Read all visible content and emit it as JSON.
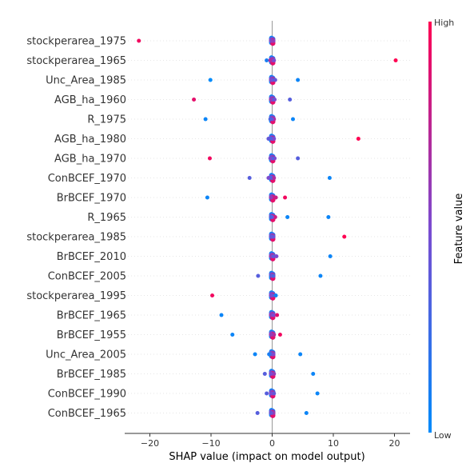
{
  "chart_data": {
    "type": "scatter",
    "title": "",
    "xlabel": "SHAP value (impact on model output)",
    "ylabel": "",
    "xlim": [
      -24,
      22.5
    ],
    "x_ticks": [
      -20,
      -10,
      0,
      10,
      20
    ],
    "x_tick_labels": [
      "−20",
      "−10",
      "0",
      "10",
      "20"
    ],
    "grid": false,
    "colorbar": {
      "title": "Feature value",
      "high_label": "High",
      "low_label": "Low",
      "low_color": "#008bfb",
      "mid_color": "#7b4bd0",
      "high_color": "#ff0052"
    },
    "features": [
      {
        "name": "stockperarea_1975",
        "points": [
          [
            -21.8,
            0.95
          ],
          [
            0,
            0.5
          ],
          [
            -0.2,
            0.5
          ],
          [
            0.2,
            0.5
          ],
          [
            0.1,
            0.6
          ]
        ]
      },
      {
        "name": "stockperarea_1965",
        "points": [
          [
            20.2,
            1.0
          ],
          [
            -0.9,
            0.1
          ],
          [
            0,
            0.6
          ],
          [
            -0.3,
            0.7
          ],
          [
            0.3,
            0.5
          ]
        ]
      },
      {
        "name": "Unc_Area_1985",
        "points": [
          [
            -10.1,
            0.0
          ],
          [
            4.2,
            0.05
          ],
          [
            0.5,
            0.4
          ],
          [
            0,
            0.3
          ],
          [
            -0.2,
            0.5
          ]
        ]
      },
      {
        "name": "AGB_ha_1960",
        "points": [
          [
            -12.8,
            0.9
          ],
          [
            2.9,
            0.35
          ],
          [
            0.4,
            0.5
          ],
          [
            0,
            0.3
          ],
          [
            -0.2,
            0.6
          ]
        ]
      },
      {
        "name": "R_1975",
        "points": [
          [
            -10.9,
            0.05
          ],
          [
            3.4,
            0.05
          ],
          [
            0.3,
            0.7
          ],
          [
            0,
            0.5
          ],
          [
            -0.3,
            0.3
          ]
        ]
      },
      {
        "name": "AGB_ha_1980",
        "points": [
          [
            14.1,
            1.0
          ],
          [
            -0.6,
            0.4
          ],
          [
            0,
            0.3
          ],
          [
            0.3,
            0.5
          ]
        ]
      },
      {
        "name": "AGB_ha_1970",
        "points": [
          [
            -10.2,
            0.95
          ],
          [
            4.2,
            0.35
          ],
          [
            0.4,
            0.5
          ],
          [
            0,
            0.3
          ],
          [
            -0.3,
            0.5
          ]
        ]
      },
      {
        "name": "ConBCEF_1970",
        "points": [
          [
            9.4,
            0.05
          ],
          [
            -3.7,
            0.35
          ],
          [
            -0.6,
            0.5
          ],
          [
            0,
            0.3
          ],
          [
            0.3,
            0.7
          ]
        ]
      },
      {
        "name": "BrBCEF_1970",
        "points": [
          [
            -10.6,
            0.05
          ],
          [
            2.1,
            0.95
          ],
          [
            0.6,
            0.8
          ],
          [
            0,
            0.8
          ],
          [
            -0.2,
            0.6
          ]
        ]
      },
      {
        "name": "R_1965",
        "points": [
          [
            9.2,
            0.05
          ],
          [
            2.5,
            0.05
          ],
          [
            0.5,
            0.8
          ],
          [
            0,
            0.5
          ],
          [
            -0.2,
            0.3
          ]
        ]
      },
      {
        "name": "stockperarea_1985",
        "points": [
          [
            11.8,
            1.0
          ],
          [
            0,
            0.3
          ],
          [
            -0.2,
            0.4
          ],
          [
            0.2,
            0.4
          ]
        ]
      },
      {
        "name": "BrBCEF_2010",
        "points": [
          [
            9.5,
            0.05
          ],
          [
            0.7,
            0.5
          ],
          [
            0,
            0.8
          ],
          [
            -0.2,
            0.6
          ],
          [
            0.2,
            0.4
          ]
        ]
      },
      {
        "name": "ConBCEF_2005",
        "points": [
          [
            7.9,
            0.05
          ],
          [
            -2.3,
            0.35
          ],
          [
            0,
            0.5
          ],
          [
            0.2,
            0.3
          ]
        ]
      },
      {
        "name": "stockperarea_1995",
        "points": [
          [
            -9.8,
            0.95
          ],
          [
            0.6,
            0.05
          ],
          [
            0,
            0.3
          ],
          [
            -0.2,
            0.5
          ]
        ]
      },
      {
        "name": "BrBCEF_1965",
        "points": [
          [
            -8.3,
            0.05
          ],
          [
            0.8,
            0.9
          ],
          [
            0,
            0.8
          ],
          [
            -0.2,
            0.6
          ],
          [
            0.2,
            0.5
          ]
        ]
      },
      {
        "name": "BrBCEF_1955",
        "points": [
          [
            -6.5,
            0.05
          ],
          [
            1.3,
            0.95
          ],
          [
            0,
            0.8
          ],
          [
            0.3,
            0.7
          ],
          [
            -0.2,
            0.6
          ]
        ]
      },
      {
        "name": "Unc_Area_2005",
        "points": [
          [
            -2.8,
            0.05
          ],
          [
            4.6,
            0.05
          ],
          [
            -0.5,
            0.1
          ],
          [
            0,
            0.3
          ],
          [
            0.2,
            0.5
          ]
        ]
      },
      {
        "name": "BrBCEF_1985",
        "points": [
          [
            6.7,
            0.05
          ],
          [
            -1.2,
            0.35
          ],
          [
            0,
            0.8
          ],
          [
            0.3,
            0.6
          ],
          [
            -0.2,
            0.5
          ]
        ]
      },
      {
        "name": "ConBCEF_1990",
        "points": [
          [
            7.4,
            0.05
          ],
          [
            -0.9,
            0.35
          ],
          [
            0,
            0.6
          ],
          [
            0.3,
            0.4
          ],
          [
            -0.2,
            0.5
          ]
        ]
      },
      {
        "name": "ConBCEF_1965",
        "points": [
          [
            5.6,
            0.05
          ],
          [
            -2.4,
            0.35
          ],
          [
            0,
            0.8
          ],
          [
            0.2,
            0.6
          ],
          [
            -0.2,
            0.4
          ]
        ]
      }
    ]
  }
}
